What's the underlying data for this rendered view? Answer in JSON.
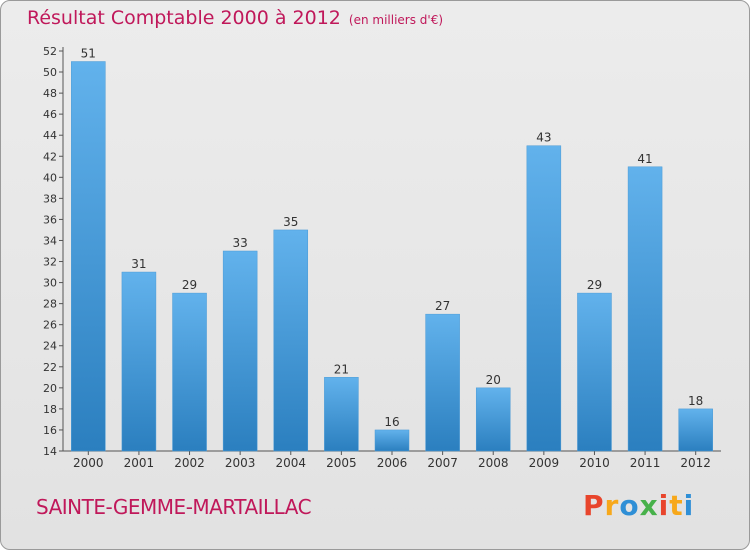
{
  "title": "Résultat Comptable 2000 à 2012",
  "unit_note": "(en milliers d'€)",
  "commune": "SAINTE-GEMME-MARTAILLAC",
  "logo": {
    "text": "Proxiti",
    "colors": [
      "#e8452c",
      "#f7a81b",
      "#2f8fd6",
      "#47b14a",
      "#e8452c",
      "#f7a81b",
      "#2f8fd6"
    ]
  },
  "colors": {
    "title": "#c0185a",
    "bar_top": "#62b2ec",
    "bar_bottom": "#2b7fbf",
    "grid": "#555555"
  },
  "chart_data": {
    "type": "bar",
    "title": "Résultat Comptable 2000 à 2012",
    "ylabel": "en milliers d'€",
    "xlabel": "",
    "categories": [
      "2000",
      "2001",
      "2002",
      "2003",
      "2004",
      "2005",
      "2006",
      "2007",
      "2008",
      "2009",
      "2010",
      "2011",
      "2012"
    ],
    "values": [
      51,
      31,
      29,
      33,
      35,
      21,
      16,
      27,
      20,
      43,
      29,
      41,
      18
    ],
    "ylim": [
      14,
      52
    ],
    "yticks": [
      14,
      16,
      18,
      20,
      22,
      24,
      26,
      28,
      30,
      32,
      34,
      36,
      38,
      40,
      42,
      44,
      46,
      48,
      50,
      52
    ]
  }
}
